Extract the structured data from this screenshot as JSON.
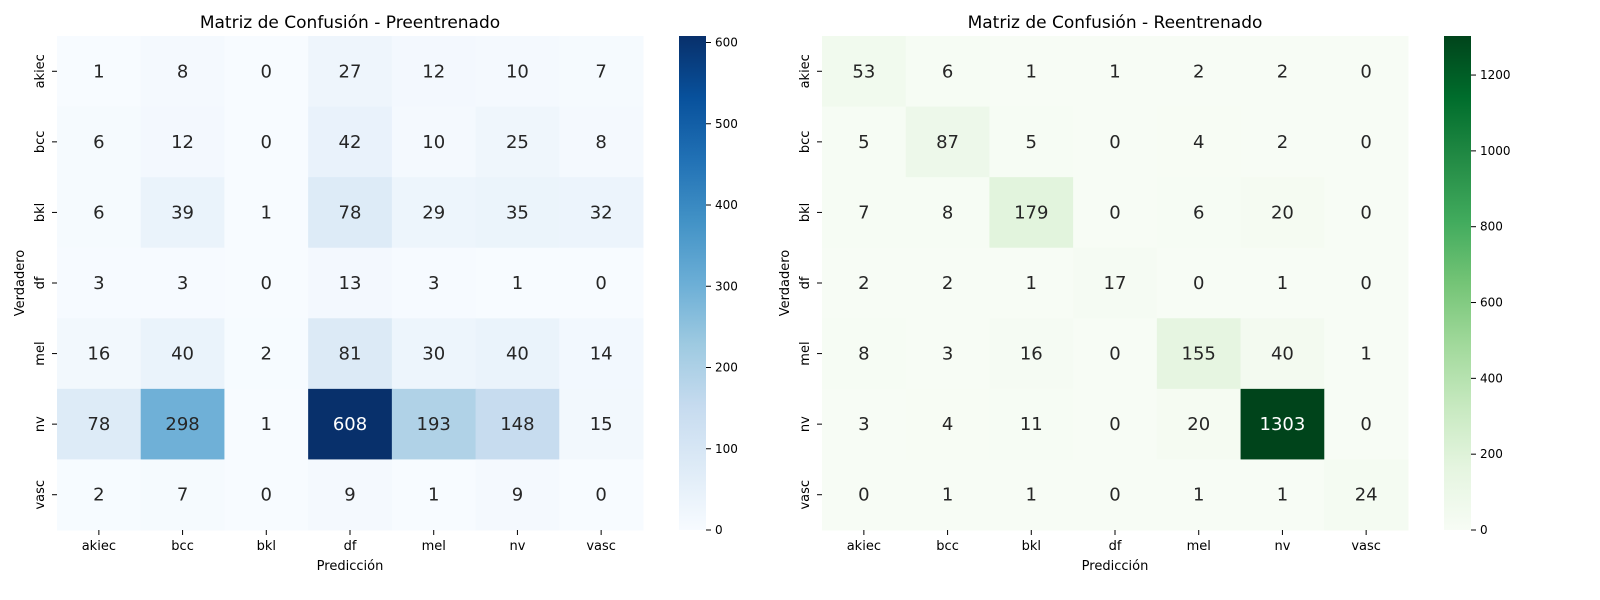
{
  "chart_data": [
    {
      "type": "heatmap",
      "title": "Matriz de Confusión - Preentrenado",
      "xlabel": "Predicción",
      "ylabel": "Verdadero",
      "x_categories": [
        "akiec",
        "bcc",
        "bkl",
        "df",
        "mel",
        "nv",
        "vasc"
      ],
      "y_categories": [
        "akiec",
        "bcc",
        "bkl",
        "df",
        "mel",
        "nv",
        "vasc"
      ],
      "values": [
        [
          1,
          8,
          0,
          27,
          12,
          10,
          7
        ],
        [
          6,
          12,
          0,
          42,
          10,
          25,
          8
        ],
        [
          6,
          39,
          1,
          78,
          29,
          35,
          32
        ],
        [
          3,
          3,
          0,
          13,
          3,
          1,
          0
        ],
        [
          16,
          40,
          2,
          81,
          30,
          40,
          14
        ],
        [
          78,
          298,
          1,
          608,
          193,
          148,
          15
        ],
        [
          2,
          7,
          0,
          9,
          1,
          9,
          0
        ]
      ],
      "colormap": "Blues",
      "color_low": "#f7fbff",
      "color_high": "#08306b",
      "vmin": 0,
      "vmax": 608,
      "colorbar_ticks": [
        0,
        100,
        200,
        300,
        400,
        500,
        600
      ]
    },
    {
      "type": "heatmap",
      "title": "Matriz de Confusión - Reentrenado",
      "xlabel": "Predicción",
      "ylabel": "Verdadero",
      "x_categories": [
        "akiec",
        "bcc",
        "bkl",
        "df",
        "mel",
        "nv",
        "vasc"
      ],
      "y_categories": [
        "akiec",
        "bcc",
        "bkl",
        "df",
        "mel",
        "nv",
        "vasc"
      ],
      "values": [
        [
          53,
          6,
          1,
          1,
          2,
          2,
          0
        ],
        [
          5,
          87,
          5,
          0,
          4,
          2,
          0
        ],
        [
          7,
          8,
          179,
          0,
          6,
          20,
          0
        ],
        [
          2,
          2,
          1,
          17,
          0,
          1,
          0
        ],
        [
          8,
          3,
          16,
          0,
          155,
          40,
          1
        ],
        [
          3,
          4,
          11,
          0,
          20,
          1303,
          0
        ],
        [
          0,
          1,
          1,
          0,
          1,
          1,
          24
        ]
      ],
      "colormap": "Greens",
      "color_low": "#f7fcf5",
      "color_high": "#00441b",
      "vmin": 0,
      "vmax": 1303,
      "colorbar_ticks": [
        0,
        200,
        400,
        600,
        800,
        1000,
        1200
      ]
    }
  ]
}
